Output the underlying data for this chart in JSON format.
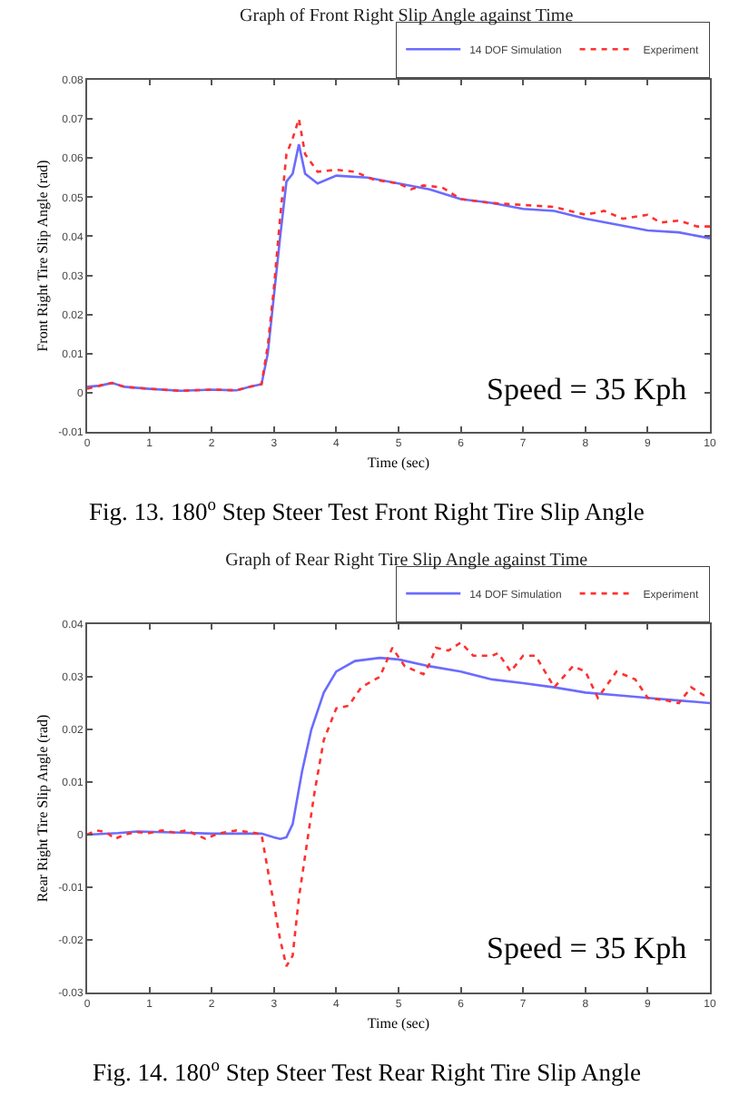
{
  "chart_data": [
    {
      "type": "line",
      "title": "Graph of Front Right Slip Angle against Time",
      "xlabel": "Time (sec)",
      "ylabel": "Front Right Tire Slip Angle (rad)",
      "annotations": [
        "Speed = 35 Kph",
        "Fig. 13. 180$^{o}$ Step Steer Test Front Right Tire Slip Angle"
      ],
      "xlim": [
        0,
        10
      ],
      "xticks": [
        0,
        1,
        2,
        3,
        4,
        5,
        6,
        7,
        8,
        9,
        10
      ],
      "ylim": [
        -0.01,
        0.08
      ],
      "yticks": [
        -0.01,
        0,
        0.01,
        0.02,
        0.03,
        0.04,
        0.05,
        0.06,
        0.07,
        0.08
      ],
      "grid": false,
      "legend": "top right",
      "series": [
        {
          "name": "14 DOF Simulation",
          "color": "#6b6bff",
          "line_style": "solid",
          "x": [
            0,
            0.2,
            0.4,
            0.6,
            1.0,
            1.5,
            2.0,
            2.4,
            2.6,
            2.8,
            2.9,
            3.0,
            3.1,
            3.2,
            3.3,
            3.4,
            3.5,
            3.7,
            4.0,
            4.5,
            5.0,
            5.5,
            6.0,
            6.5,
            7.0,
            7.5,
            8.0,
            8.5,
            9.0,
            9.5,
            10
          ],
          "values": [
            0.0015,
            0.0018,
            0.0025,
            0.0015,
            0.001,
            0.0005,
            0.0008,
            0.0006,
            0.0015,
            0.0022,
            0.01,
            0.025,
            0.04,
            0.054,
            0.056,
            0.0635,
            0.056,
            0.0535,
            0.0555,
            0.055,
            0.0535,
            0.052,
            0.0495,
            0.0485,
            0.047,
            0.0465,
            0.0445,
            0.043,
            0.0415,
            0.041,
            0.0395
          ]
        },
        {
          "name": "Experiment",
          "color": "#ff3030",
          "line_style": "dotted",
          "x": [
            0,
            0.2,
            0.4,
            0.6,
            1.0,
            1.5,
            2.0,
            2.4,
            2.6,
            2.8,
            2.9,
            3.0,
            3.1,
            3.2,
            3.3,
            3.4,
            3.5,
            3.7,
            4.0,
            4.3,
            4.6,
            5.0,
            5.2,
            5.4,
            5.7,
            6.0,
            6.5,
            7.0,
            7.5,
            8.0,
            8.3,
            8.6,
            9.0,
            9.2,
            9.5,
            9.8,
            10
          ],
          "values": [
            0.001,
            0.0018,
            0.0025,
            0.0015,
            0.001,
            0.0005,
            0.0008,
            0.0006,
            0.0015,
            0.0022,
            0.012,
            0.027,
            0.045,
            0.061,
            0.065,
            0.07,
            0.061,
            0.0565,
            0.057,
            0.0565,
            0.0545,
            0.0535,
            0.052,
            0.053,
            0.0525,
            0.0495,
            0.0485,
            0.048,
            0.0475,
            0.0455,
            0.0465,
            0.0445,
            0.0455,
            0.0435,
            0.044,
            0.0425,
            0.0425
          ]
        }
      ]
    },
    {
      "type": "line",
      "title": "Graph of Rear Right Tire Slip Angle against Time",
      "xlabel": "Time (sec)",
      "ylabel": "Rear Right Tire Slip Angle (rad)",
      "annotations": [
        "Speed = 35 Kph",
        "Fig. 14. 180$^{o}$ Step Steer Test Rear Right Tire Slip Angle"
      ],
      "xlim": [
        0,
        10
      ],
      "xticks": [
        0,
        1,
        2,
        3,
        4,
        5,
        6,
        7,
        8,
        9,
        10
      ],
      "ylim": [
        -0.03,
        0.04
      ],
      "yticks": [
        -0.03,
        -0.02,
        -0.01,
        0,
        0.01,
        0.02,
        0.03,
        0.04
      ],
      "grid": false,
      "legend": "top right",
      "series": [
        {
          "name": "14 DOF Simulation",
          "color": "#6b6bff",
          "line_style": "solid",
          "x": [
            0,
            0.5,
            0.8,
            1.5,
            2.0,
            2.8,
            3.0,
            3.1,
            3.2,
            3.3,
            3.45,
            3.6,
            3.8,
            4.0,
            4.3,
            4.7,
            5.0,
            5.5,
            6.0,
            6.5,
            7.0,
            7.5,
            8.0,
            8.5,
            9.0,
            9.5,
            10
          ],
          "values": [
            0,
            0.0003,
            0.0006,
            0.0004,
            0.0002,
            0.0002,
            -0.0005,
            -0.0008,
            -0.0005,
            0.002,
            0.012,
            0.02,
            0.027,
            0.031,
            0.033,
            0.0336,
            0.0333,
            0.032,
            0.031,
            0.0295,
            0.0288,
            0.028,
            0.027,
            0.0265,
            0.026,
            0.0255,
            0.025
          ]
        },
        {
          "name": "Experiment",
          "color": "#ff3030",
          "line_style": "dotted",
          "x": [
            0,
            0.15,
            0.3,
            0.45,
            0.6,
            0.8,
            1.0,
            1.2,
            1.4,
            1.6,
            1.9,
            2.1,
            2.4,
            2.7,
            2.8,
            2.95,
            3.1,
            3.2,
            3.3,
            3.4,
            3.55,
            3.65,
            3.8,
            4.0,
            4.2,
            4.4,
            4.7,
            4.9,
            5.1,
            5.4,
            5.5,
            5.6,
            5.8,
            6.0,
            6.2,
            6.5,
            6.6,
            6.8,
            7.0,
            7.2,
            7.5,
            7.8,
            8.0,
            8.2,
            8.5,
            8.8,
            9.0,
            9.3,
            9.5,
            9.7,
            9.9,
            10
          ],
          "values": [
            0,
            0.0008,
            0.0005,
            -0.0008,
            0,
            0.0005,
            0.0003,
            0.0008,
            0.0004,
            0.0008,
            -0.0008,
            0.0002,
            0.0008,
            0.0003,
            0,
            -0.01,
            -0.02,
            -0.025,
            -0.023,
            -0.012,
            0,
            0.008,
            0.018,
            0.024,
            0.0245,
            0.028,
            0.03,
            0.0355,
            0.032,
            0.0305,
            0.0325,
            0.0355,
            0.035,
            0.0365,
            0.034,
            0.034,
            0.0345,
            0.031,
            0.034,
            0.034,
            0.028,
            0.032,
            0.031,
            0.026,
            0.031,
            0.0295,
            0.026,
            0.0255,
            0.025,
            0.028,
            0.0265,
            0.0265
          ]
        }
      ]
    }
  ]
}
